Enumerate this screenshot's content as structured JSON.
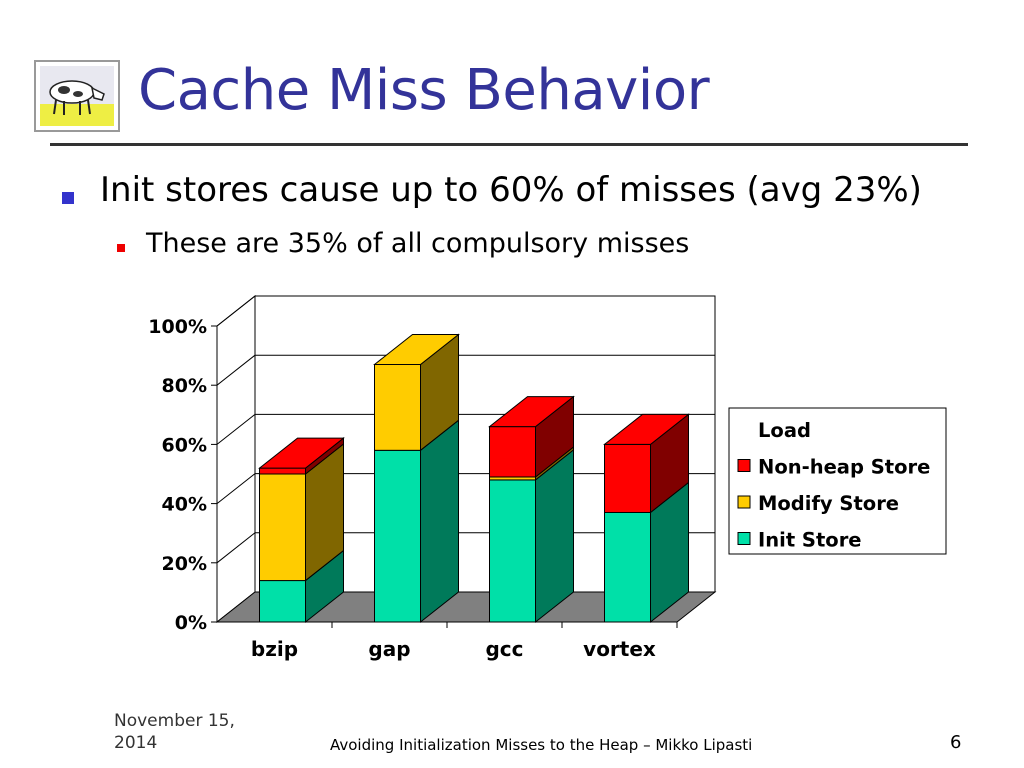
{
  "slide": {
    "title": "Cache Miss Behavior",
    "bullet_main": "Init stores cause up to 60% of misses (avg 23%)",
    "bullet_sub": "These are 35% of all compulsory misses",
    "footer_date": "November 15, 2014",
    "footer_title": "Avoiding Initialization Misses to the Heap – Mikko Lipasti",
    "page_number": "6",
    "logo_icon": "cow-logo-icon"
  },
  "chart_data": {
    "type": "bar",
    "stacked": true,
    "three_d": true,
    "categories": [
      "bzip",
      "gap",
      "gcc",
      "vortex"
    ],
    "y_ticks": [
      "0%",
      "20%",
      "40%",
      "60%",
      "80%",
      "100%"
    ],
    "ylim": [
      0,
      100
    ],
    "legend_position": "right",
    "series": [
      {
        "name": "Init Store",
        "values": [
          14,
          58,
          48,
          37
        ],
        "color": "#00e0a8",
        "side": "#007a5a"
      },
      {
        "name": "Modify Store",
        "values": [
          36,
          29,
          1,
          0
        ],
        "color": "#ffcc00",
        "side": "#806600"
      },
      {
        "name": "Non-heap Store",
        "values": [
          2,
          0,
          17,
          23
        ],
        "color": "#ff0000",
        "side": "#800000"
      },
      {
        "name": "Load",
        "values": [
          0,
          0,
          0,
          0
        ],
        "color": "#ffffff",
        "side": "#ffffff"
      }
    ],
    "legend_order": [
      "Load",
      "Non-heap Store",
      "Modify Store",
      "Init Store"
    ],
    "colors": {
      "floor": "#808080",
      "grid": "#000000"
    }
  }
}
